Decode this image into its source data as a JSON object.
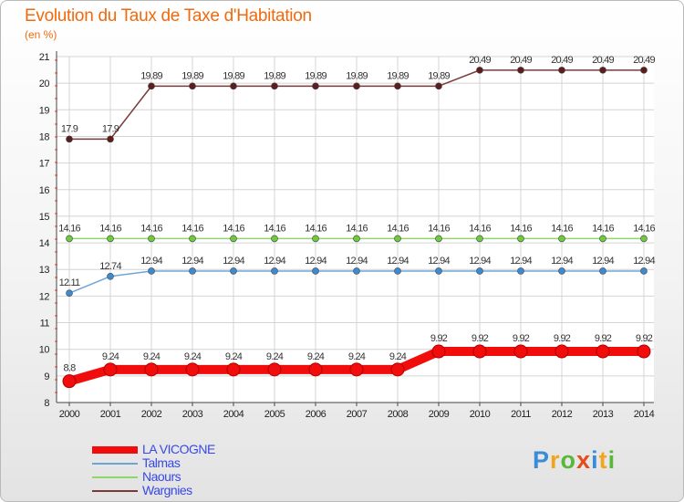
{
  "title": "Evolution du Taux de Taxe d'Habitation",
  "subtitle": "(en %)",
  "logo": {
    "text": "Proxiti",
    "letters": [
      {
        "ch": "P",
        "color": "#3a8bd8"
      },
      {
        "ch": "r",
        "color": "#f2a51c"
      },
      {
        "ch": "o",
        "color": "#58b83a"
      },
      {
        "ch": "x",
        "color": "#e84a1c"
      },
      {
        "ch": "i",
        "color": "#3a8bd8"
      },
      {
        "ch": "t",
        "color": "#f2a51c"
      },
      {
        "ch": "i",
        "color": "#58b83a"
      }
    ]
  },
  "chart_data": {
    "type": "line",
    "title": "Evolution du Taux de Taxe d'Habitation",
    "ylabel": "(en %)",
    "xlabel": "",
    "categories": [
      "2000",
      "2001",
      "2002",
      "2003",
      "2004",
      "2005",
      "2006",
      "2007",
      "2008",
      "2009",
      "2010",
      "2011",
      "2012",
      "2013",
      "2014"
    ],
    "ylim": [
      8,
      21
    ],
    "yticks": [
      8,
      9,
      10,
      11,
      12,
      13,
      14,
      15,
      16,
      17,
      18,
      19,
      20,
      21
    ],
    "series": [
      {
        "name": "LA VICOGNE",
        "color": "#f20d0d",
        "highlight": true,
        "values": [
          8.8,
          9.24,
          9.24,
          9.24,
          9.24,
          9.24,
          9.24,
          9.24,
          9.24,
          9.92,
          9.92,
          9.92,
          9.92,
          9.92,
          9.92
        ],
        "labels": [
          "8.8",
          "9.24",
          "9.24",
          "9.24",
          "9.24",
          "9.24",
          "9.24",
          "9.24",
          "9.24",
          "9.92",
          "9.92",
          "9.92",
          "9.92",
          "9.92",
          "9.92"
        ]
      },
      {
        "name": "Talmas",
        "color": "#6fa5d6",
        "marker": "#3d8ad0",
        "values": [
          12.11,
          12.74,
          12.94,
          12.94,
          12.94,
          12.94,
          12.94,
          12.94,
          12.94,
          12.94,
          12.94,
          12.94,
          12.94,
          12.94,
          12.94
        ],
        "labels": [
          "12.11",
          "12.74",
          "12.94",
          "12.94",
          "12.94",
          "12.94",
          "12.94",
          "12.94",
          "12.94",
          "12.94",
          "12.94",
          "12.94",
          "12.94",
          "12.94",
          "12.94"
        ]
      },
      {
        "name": "Naours",
        "color": "#8fd66a",
        "marker": "#6ccb3e",
        "values": [
          14.16,
          14.16,
          14.16,
          14.16,
          14.16,
          14.16,
          14.16,
          14.16,
          14.16,
          14.16,
          14.16,
          14.16,
          14.16,
          14.16,
          14.16
        ],
        "labels": [
          "14.16",
          "14.16",
          "14.16",
          "14.16",
          "14.16",
          "14.16",
          "14.16",
          "14.16",
          "14.16",
          "14.16",
          "14.16",
          "14.16",
          "14.16",
          "14.16",
          "14.16"
        ]
      },
      {
        "name": "Wargnies",
        "color": "#7a3a3a",
        "marker": "#5e1d1d",
        "values": [
          17.9,
          17.9,
          19.89,
          19.89,
          19.89,
          19.89,
          19.89,
          19.89,
          19.89,
          19.89,
          20.49,
          20.49,
          20.49,
          20.49,
          20.49
        ],
        "labels": [
          "17.9",
          "17.9",
          "19.89",
          "19.89",
          "19.89",
          "19.89",
          "19.89",
          "19.89",
          "19.89",
          "19.89",
          "20.49",
          "20.49",
          "20.49",
          "20.49",
          "20.49"
        ]
      }
    ],
    "legend_position": "bottom-left"
  }
}
